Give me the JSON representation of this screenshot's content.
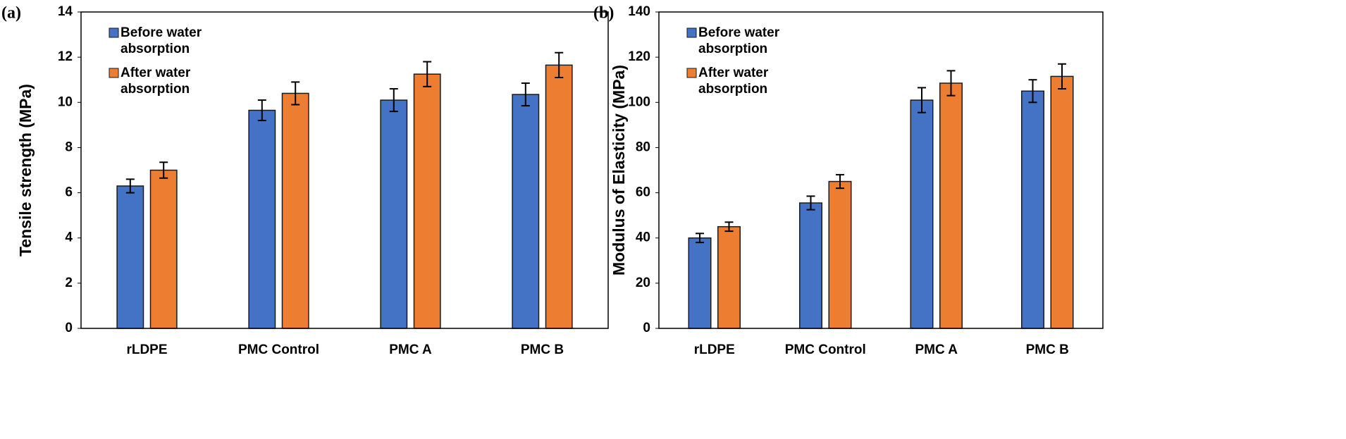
{
  "chart_data": [
    {
      "type": "bar",
      "panel_label": "(a)",
      "y_label": "Tensile strength (MPa)",
      "categories": [
        "rLDPE",
        "PMC Control",
        "PMC A",
        "PMC B"
      ],
      "series": [
        {
          "name": "Before water absorption",
          "color": "#4472c4",
          "values": [
            6.3,
            9.65,
            10.1,
            10.35
          ],
          "errors": [
            0.3,
            0.45,
            0.5,
            0.5
          ]
        },
        {
          "name": "After water absorption",
          "color": "#ed7d31",
          "values": [
            7.0,
            10.4,
            11.25,
            11.65
          ],
          "errors": [
            0.35,
            0.5,
            0.55,
            0.55
          ]
        }
      ],
      "ylim": [
        0,
        14
      ],
      "yticks": [
        0,
        2,
        4,
        6,
        8,
        10,
        12,
        14
      ],
      "legend": "upper left"
    },
    {
      "type": "bar",
      "panel_label": "(b)",
      "y_label": "Modulus of Elasticity (MPa)",
      "categories": [
        "rLDPE",
        "PMC Control",
        "PMC A",
        "PMC B"
      ],
      "series": [
        {
          "name": "Before water absorption",
          "color": "#4472c4",
          "values": [
            40,
            55.5,
            101,
            105
          ],
          "errors": [
            2,
            3,
            5.5,
            5
          ]
        },
        {
          "name": "After water absorption",
          "color": "#ed7d31",
          "values": [
            45,
            65,
            108.5,
            111.5
          ],
          "errors": [
            2,
            3,
            5.5,
            5.5
          ]
        }
      ],
      "ylim": [
        0,
        140
      ],
      "yticks": [
        0,
        20,
        40,
        60,
        80,
        100,
        120,
        140
      ],
      "legend": "upper left"
    }
  ]
}
